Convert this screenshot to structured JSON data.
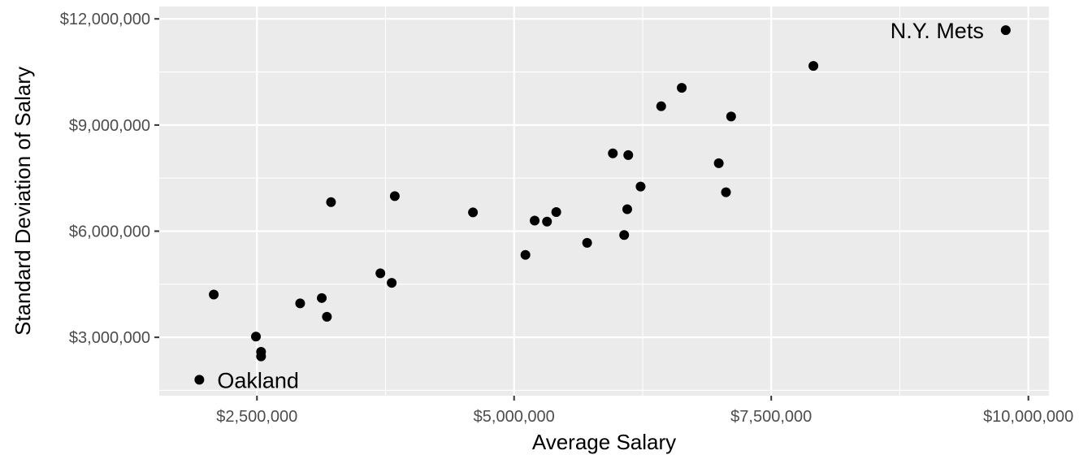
{
  "chart_data": {
    "type": "scatter",
    "xlabel": "Average Salary",
    "ylabel": "Standard Deviation of Salary",
    "xlim": [
      1550000,
      10200000
    ],
    "ylim": [
      1350000,
      12350000
    ],
    "xticks": [
      2500000,
      5000000,
      7500000,
      10000000
    ],
    "yticks": [
      3000000,
      6000000,
      9000000,
      12000000
    ],
    "xtick_labels": [
      "$2,500,000",
      "$5,000,000",
      "$7,500,000",
      "$10,000,000"
    ],
    "ytick_labels": [
      "$3,000,000",
      "$6,000,000",
      "$9,000,000",
      "$12,000,000"
    ],
    "grid": true,
    "point_color": "#000000",
    "panel_color": "#ebebeb",
    "grid_color": "#ffffff",
    "points": [
      {
        "x": 9780000,
        "y": 11680000,
        "label": "N.Y. Mets"
      },
      {
        "x": 1940000,
        "y": 1800000,
        "label": "Oakland"
      },
      {
        "x": 7910000,
        "y": 10670000
      },
      {
        "x": 6630000,
        "y": 10050000
      },
      {
        "x": 6430000,
        "y": 9530000
      },
      {
        "x": 7110000,
        "y": 9240000
      },
      {
        "x": 5960000,
        "y": 8200000
      },
      {
        "x": 6110000,
        "y": 8150000
      },
      {
        "x": 6990000,
        "y": 7920000
      },
      {
        "x": 6230000,
        "y": 7260000
      },
      {
        "x": 7060000,
        "y": 7100000
      },
      {
        "x": 3840000,
        "y": 6990000
      },
      {
        "x": 3220000,
        "y": 6820000
      },
      {
        "x": 4600000,
        "y": 6530000
      },
      {
        "x": 5410000,
        "y": 6540000
      },
      {
        "x": 6100000,
        "y": 6620000
      },
      {
        "x": 5200000,
        "y": 6300000
      },
      {
        "x": 5320000,
        "y": 6270000
      },
      {
        "x": 6070000,
        "y": 5890000
      },
      {
        "x": 5710000,
        "y": 5670000
      },
      {
        "x": 5110000,
        "y": 5330000
      },
      {
        "x": 3700000,
        "y": 4810000
      },
      {
        "x": 3810000,
        "y": 4540000
      },
      {
        "x": 2080000,
        "y": 4210000
      },
      {
        "x": 3130000,
        "y": 4110000
      },
      {
        "x": 2920000,
        "y": 3960000
      },
      {
        "x": 3180000,
        "y": 3580000
      },
      {
        "x": 2490000,
        "y": 3020000
      },
      {
        "x": 2540000,
        "y": 2590000
      },
      {
        "x": 2540000,
        "y": 2460000
      }
    ]
  }
}
